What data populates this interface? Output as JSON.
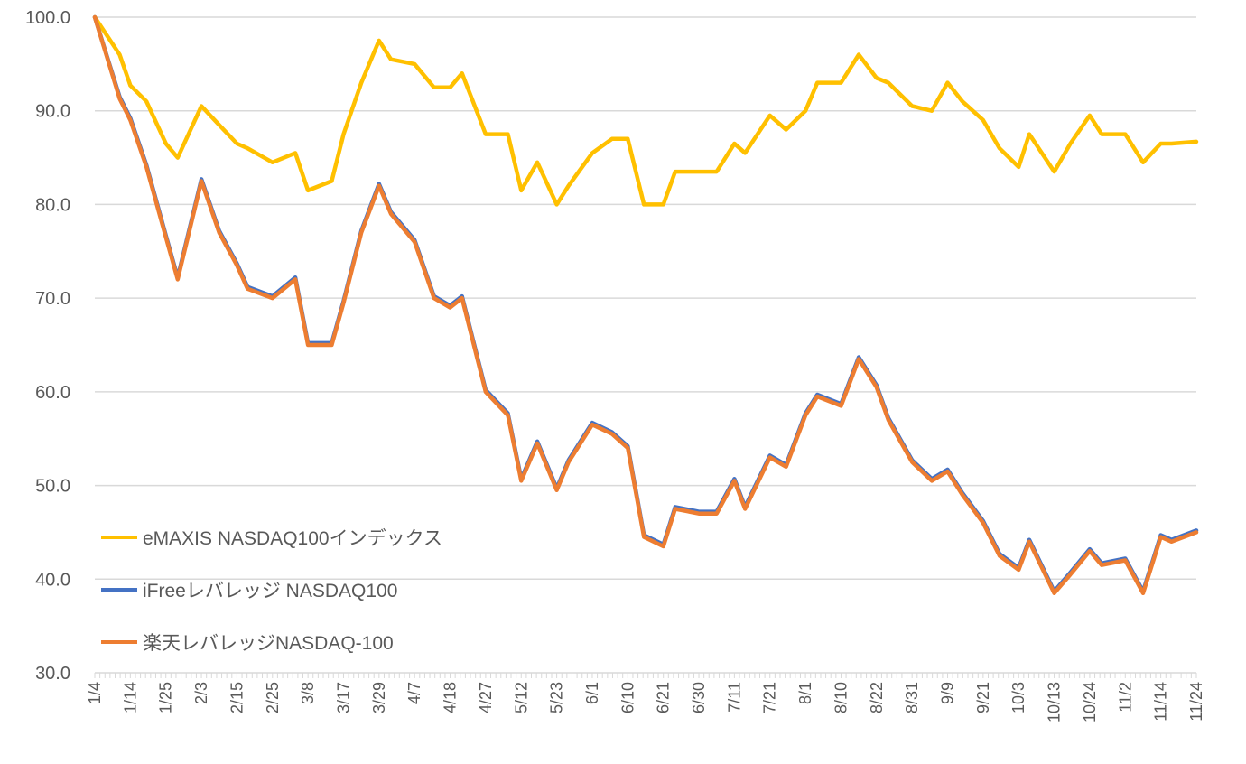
{
  "chart_data": {
    "type": "line",
    "title": "",
    "xlabel": "",
    "ylabel": "",
    "ylim": [
      30,
      100
    ],
    "yticks": [
      "30.0",
      "40.0",
      "50.0",
      "60.0",
      "70.0",
      "80.0",
      "90.0",
      "100.0"
    ],
    "grid": "horizontal",
    "legend_position": "left-bottom",
    "xtick_labels": [
      "1/4",
      "1/14",
      "1/25",
      "2/3",
      "2/15",
      "2/25",
      "3/8",
      "3/17",
      "3/29",
      "4/7",
      "4/18",
      "4/27",
      "5/12",
      "5/23",
      "6/1",
      "6/10",
      "6/21",
      "6/30",
      "7/11",
      "7/21",
      "8/1",
      "8/10",
      "8/22",
      "8/31",
      "9/9",
      "9/21",
      "10/3",
      "10/13",
      "10/24",
      "11/2",
      "11/14",
      "11/24"
    ],
    "x": [
      "1/4",
      "1/11",
      "1/14",
      "1/19",
      "1/25",
      "1/28",
      "2/3",
      "2/9",
      "2/15",
      "2/18",
      "2/25",
      "3/3",
      "3/8",
      "3/14",
      "3/17",
      "3/23",
      "3/29",
      "4/1",
      "4/7",
      "4/13",
      "4/18",
      "4/21",
      "4/27",
      "5/6",
      "5/12",
      "5/17",
      "5/23",
      "5/26",
      "6/1",
      "6/6",
      "6/10",
      "6/15",
      "6/21",
      "6/24",
      "6/30",
      "7/5",
      "7/11",
      "7/14",
      "7/21",
      "7/26",
      "8/1",
      "8/4",
      "8/10",
      "8/16",
      "8/22",
      "8/25",
      "8/31",
      "9/5",
      "9/9",
      "9/14",
      "9/21",
      "9/27",
      "10/3",
      "10/6",
      "10/13",
      "10/18",
      "10/24",
      "10/27",
      "11/2",
      "11/8",
      "11/14",
      "11/17",
      "11/24"
    ],
    "series": [
      {
        "name": "eMAXIS NASDAQ100インデックス",
        "color": "#FFC000",
        "values": [
          100,
          96.0,
          92.7,
          91.0,
          86.5,
          85.0,
          90.5,
          88.5,
          86.5,
          86.0,
          84.5,
          85.5,
          81.5,
          82.5,
          87.5,
          93.0,
          97.5,
          95.5,
          95.0,
          92.5,
          92.5,
          94.0,
          87.5,
          87.5,
          81.5,
          84.5,
          80.0,
          82.0,
          85.5,
          87.0,
          87.0,
          80.0,
          80.0,
          83.5,
          83.5,
          83.5,
          86.5,
          85.5,
          89.5,
          88.0,
          90.0,
          93.0,
          93.0,
          96.0,
          93.5,
          93.0,
          90.5,
          90.0,
          93.0,
          91.0,
          89.0,
          86.0,
          84.0,
          87.5,
          83.5,
          86.5,
          89.5,
          87.5,
          87.5,
          84.5,
          86.5,
          86.5,
          86.7
        ]
      },
      {
        "name": "iFreeレバレッジ NASDAQ100",
        "color": "#4472C4",
        "values": [
          100,
          91.5,
          89.2,
          84.2,
          76.7,
          72.2,
          82.7,
          77.2,
          73.7,
          71.2,
          70.2,
          72.2,
          65.2,
          65.2,
          69.7,
          77.2,
          82.2,
          79.2,
          76.2,
          70.2,
          69.2,
          70.2,
          60.2,
          57.7,
          50.7,
          54.7,
          49.7,
          52.7,
          56.7,
          55.7,
          54.2,
          44.7,
          43.7,
          47.7,
          47.2,
          47.2,
          50.7,
          47.7,
          53.2,
          52.2,
          57.7,
          59.7,
          58.7,
          63.7,
          60.7,
          57.2,
          52.7,
          50.7,
          51.7,
          49.2,
          46.2,
          42.7,
          41.2,
          44.2,
          38.7,
          40.7,
          43.2,
          41.7,
          42.2,
          38.7,
          44.7,
          44.2,
          45.2
        ]
      },
      {
        "name": "楽天レバレッジNASDAQ-100",
        "color": "#ED7D31",
        "values": [
          100,
          91.3,
          89.0,
          84.0,
          76.5,
          72.0,
          82.5,
          77.0,
          73.5,
          71.0,
          70.0,
          72.0,
          65.0,
          65.0,
          69.5,
          77.0,
          82.0,
          79.0,
          76.0,
          70.0,
          69.0,
          70.0,
          60.0,
          57.5,
          50.5,
          54.5,
          49.5,
          52.5,
          56.5,
          55.5,
          54.0,
          44.5,
          43.5,
          47.5,
          47.0,
          47.0,
          50.5,
          47.5,
          53.0,
          52.0,
          57.5,
          59.5,
          58.5,
          63.5,
          60.5,
          57.0,
          52.5,
          50.5,
          51.5,
          49.0,
          46.0,
          42.5,
          41.0,
          44.0,
          38.5,
          40.5,
          43.0,
          41.5,
          42.0,
          38.5,
          44.5,
          44.0,
          45.0
        ]
      }
    ]
  }
}
